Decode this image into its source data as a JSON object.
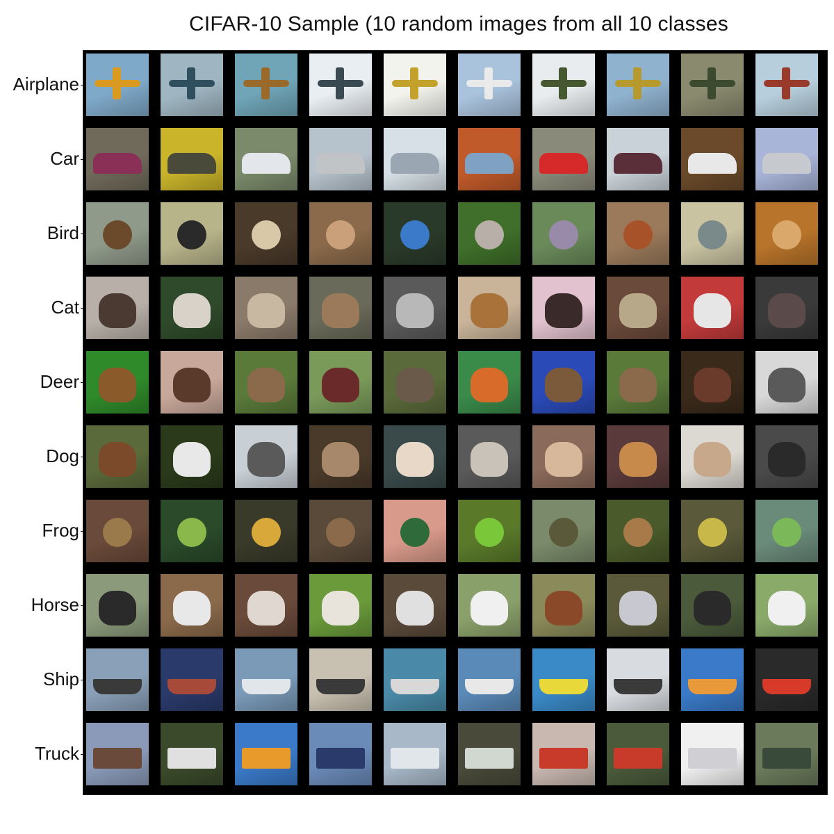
{
  "title": "CIFAR-10 Sample (10 random images from all 10 classes",
  "rows": [
    {
      "label": "Airplane",
      "cells": [
        {
          "bg": "#7fa9c9",
          "fg": "#d99a1f",
          "subject": "airplane"
        },
        {
          "bg": "#9fb6c2",
          "fg": "#2f4f5f",
          "subject": "airplane"
        },
        {
          "bg": "#6fa5b7",
          "fg": "#9a6a2a",
          "subject": "airplane"
        },
        {
          "bg": "#e9eef2",
          "fg": "#3a4a52",
          "subject": "airplane"
        },
        {
          "bg": "#f3f3ee",
          "fg": "#c2a22a",
          "subject": "airplane"
        },
        {
          "bg": "#a9c3dd",
          "fg": "#eaeaea",
          "subject": "airplane"
        },
        {
          "bg": "#e8ecee",
          "fg": "#45582f",
          "subject": "airplane"
        },
        {
          "bg": "#8fb2cf",
          "fg": "#b69a2d",
          "subject": "airplane"
        },
        {
          "bg": "#8a8a6f",
          "fg": "#3c4a2f",
          "subject": "airplane"
        },
        {
          "bg": "#b7cfdd",
          "fg": "#9a3a2a",
          "subject": "airplane"
        }
      ]
    },
    {
      "label": "Car",
      "cells": [
        {
          "bg": "#6f6a5a",
          "fg": "#8a2f55",
          "subject": "car"
        },
        {
          "bg": "#c9b42a",
          "fg": "#4a4a3a",
          "subject": "car"
        },
        {
          "bg": "#7a8a6a",
          "fg": "#e3e6ea",
          "subject": "car"
        },
        {
          "bg": "#b6c2cc",
          "fg": "#c0c4c6",
          "subject": "car"
        },
        {
          "bg": "#d6e0e6",
          "fg": "#9aa6b2",
          "subject": "car"
        },
        {
          "bg": "#c05a2a",
          "fg": "#7fa2c4",
          "subject": "car"
        },
        {
          "bg": "#8a8a7a",
          "fg": "#d62a2a",
          "subject": "car"
        },
        {
          "bg": "#c9d2d8",
          "fg": "#5a2f3a",
          "subject": "car"
        },
        {
          "bg": "#6a4a2a",
          "fg": "#e8e8e8",
          "subject": "car"
        },
        {
          "bg": "#a8b4d8",
          "fg": "#c6cace",
          "subject": "car"
        }
      ]
    },
    {
      "label": "Bird",
      "cells": [
        {
          "bg": "#8f9a8a",
          "fg": "#6a4a2a",
          "subject": "bird"
        },
        {
          "bg": "#b8b48a",
          "fg": "#2a2a2a",
          "subject": "bird"
        },
        {
          "bg": "#4a3a2a",
          "fg": "#d8c8a8",
          "subject": "bird"
        },
        {
          "bg": "#8a6a4a",
          "fg": "#c9a07a",
          "subject": "bird"
        },
        {
          "bg": "#2a3a2a",
          "fg": "#3a7ac9",
          "subject": "bird"
        },
        {
          "bg": "#3f6f2a",
          "fg": "#b8b0a8",
          "subject": "bird"
        },
        {
          "bg": "#6a8a5a",
          "fg": "#9a8aaa",
          "subject": "bird"
        },
        {
          "bg": "#9a7a5a",
          "fg": "#a8522a",
          "subject": "bird"
        },
        {
          "bg": "#c9c3a2",
          "fg": "#7a8a8a",
          "subject": "bird"
        },
        {
          "bg": "#b8742a",
          "fg": "#d9a86a",
          "subject": "bird"
        }
      ]
    },
    {
      "label": "Cat",
      "cells": [
        {
          "bg": "#b8b0a8",
          "fg": "#4a3a32",
          "subject": "cat"
        },
        {
          "bg": "#2f4a2a",
          "fg": "#d8d2c8",
          "subject": "cat"
        },
        {
          "bg": "#8a7a6a",
          "fg": "#c8b8a2",
          "subject": "cat"
        },
        {
          "bg": "#6a6a5a",
          "fg": "#9a7a5a",
          "subject": "cat"
        },
        {
          "bg": "#5a5a5a",
          "fg": "#b8b8b8",
          "subject": "cat"
        },
        {
          "bg": "#c9b49a",
          "fg": "#a8723a",
          "subject": "cat"
        },
        {
          "bg": "#e2c2cf",
          "fg": "#3a2a2a",
          "subject": "cat"
        },
        {
          "bg": "#6a4a3a",
          "fg": "#b8a88a",
          "subject": "cat"
        },
        {
          "bg": "#c23a3a",
          "fg": "#e6e6e6",
          "subject": "cat"
        },
        {
          "bg": "#3a3a3a",
          "fg": "#5a4a4a",
          "subject": "cat"
        }
      ]
    },
    {
      "label": "Deer",
      "cells": [
        {
          "bg": "#2f8a2a",
          "fg": "#8a5a2a",
          "subject": "deer"
        },
        {
          "bg": "#c8a89a",
          "fg": "#5a3a2a",
          "subject": "deer"
        },
        {
          "bg": "#5a7a3a",
          "fg": "#8a6a4a",
          "subject": "deer"
        },
        {
          "bg": "#7a9a5a",
          "fg": "#6a2a2a",
          "subject": "deer"
        },
        {
          "bg": "#5a6a3a",
          "fg": "#6a5a4a",
          "subject": "deer"
        },
        {
          "bg": "#3a8a4a",
          "fg": "#d86a2a",
          "subject": "deer"
        },
        {
          "bg": "#2a4ab8",
          "fg": "#7a5a3a",
          "subject": "deer"
        },
        {
          "bg": "#5a7a3a",
          "fg": "#8a6a4a",
          "subject": "deer"
        },
        {
          "bg": "#3a2a1a",
          "fg": "#6a3a2a",
          "subject": "deer"
        },
        {
          "bg": "#d8d8d8",
          "fg": "#5a5a5a",
          "subject": "deer"
        }
      ]
    },
    {
      "label": "Dog",
      "cells": [
        {
          "bg": "#5a6a3a",
          "fg": "#7a4a2a",
          "subject": "dog"
        },
        {
          "bg": "#2a3a1a",
          "fg": "#e8e8e8",
          "subject": "dog"
        },
        {
          "bg": "#c8d0d6",
          "fg": "#5a5a5a",
          "subject": "dog"
        },
        {
          "bg": "#4a3a2a",
          "fg": "#a8886a",
          "subject": "dog"
        },
        {
          "bg": "#3a4a4a",
          "fg": "#e8d8c8",
          "subject": "dog"
        },
        {
          "bg": "#5a5a5a",
          "fg": "#c8c2b8",
          "subject": "dog"
        },
        {
          "bg": "#8a6a5a",
          "fg": "#d8b89a",
          "subject": "dog"
        },
        {
          "bg": "#5a3a3a",
          "fg": "#c88a4a",
          "subject": "dog"
        },
        {
          "bg": "#dcd8d2",
          "fg": "#c8a88a",
          "subject": "dog"
        },
        {
          "bg": "#4a4a4a",
          "fg": "#2a2a2a",
          "subject": "dog"
        }
      ]
    },
    {
      "label": "Frog",
      "cells": [
        {
          "bg": "#6a4a3a",
          "fg": "#9a7a4a",
          "subject": "frog"
        },
        {
          "bg": "#2a4a2a",
          "fg": "#8ab84a",
          "subject": "frog"
        },
        {
          "bg": "#3a3a2a",
          "fg": "#d8a83a",
          "subject": "frog"
        },
        {
          "bg": "#5a4a3a",
          "fg": "#8a6a4a",
          "subject": "frog"
        },
        {
          "bg": "#d89a8a",
          "fg": "#2f6a3a",
          "subject": "frog"
        },
        {
          "bg": "#5a7a2a",
          "fg": "#7ac83a",
          "subject": "frog"
        },
        {
          "bg": "#7a8a6a",
          "fg": "#5a5a3a",
          "subject": "frog"
        },
        {
          "bg": "#4a5a2a",
          "fg": "#a87a4a",
          "subject": "frog"
        },
        {
          "bg": "#5a5a3a",
          "fg": "#c8b84a",
          "subject": "frog"
        },
        {
          "bg": "#6a8a7a",
          "fg": "#7ab85a",
          "subject": "frog"
        }
      ]
    },
    {
      "label": "Horse",
      "cells": [
        {
          "bg": "#8a9a7a",
          "fg": "#2a2a2a",
          "subject": "horse"
        },
        {
          "bg": "#8a6a4a",
          "fg": "#e8e8e8",
          "subject": "horse"
        },
        {
          "bg": "#6a4a3a",
          "fg": "#e0d8d0",
          "subject": "horse"
        },
        {
          "bg": "#6a9a3a",
          "fg": "#e8e4dc",
          "subject": "horse"
        },
        {
          "bg": "#5a4a3a",
          "fg": "#e0e0e0",
          "subject": "horse"
        },
        {
          "bg": "#8aa06a",
          "fg": "#f0f0f0",
          "subject": "horse"
        },
        {
          "bg": "#8a8a5a",
          "fg": "#8a4a2a",
          "subject": "horse"
        },
        {
          "bg": "#5a5a3a",
          "fg": "#c8c8d0",
          "subject": "horse"
        },
        {
          "bg": "#4a5a3a",
          "fg": "#2a2a2a",
          "subject": "horse"
        },
        {
          "bg": "#8aaa6a",
          "fg": "#f0f0f0",
          "subject": "horse"
        }
      ]
    },
    {
      "label": "Ship",
      "cells": [
        {
          "bg": "#8aa0b8",
          "fg": "#3a3a3a",
          "subject": "ship"
        },
        {
          "bg": "#2a3a6a",
          "fg": "#a84a3a",
          "subject": "ship"
        },
        {
          "bg": "#7a9ab8",
          "fg": "#e0e6ea",
          "subject": "ship"
        },
        {
          "bg": "#c8c0b0",
          "fg": "#3a3a3a",
          "subject": "ship"
        },
        {
          "bg": "#4a8aa8",
          "fg": "#d8d8d8",
          "subject": "ship"
        },
        {
          "bg": "#5a8ab8",
          "fg": "#e8e8e8",
          "subject": "ship"
        },
        {
          "bg": "#3a8ac8",
          "fg": "#e8d83a",
          "subject": "ship"
        },
        {
          "bg": "#d8dce0",
          "fg": "#3a3a3a",
          "subject": "ship"
        },
        {
          "bg": "#3a7ac8",
          "fg": "#e89a3a",
          "subject": "ship"
        },
        {
          "bg": "#2a2a2a",
          "fg": "#d83a2a",
          "subject": "ship"
        }
      ]
    },
    {
      "label": "Truck",
      "cells": [
        {
          "bg": "#8a9ab8",
          "fg": "#6a4a3a",
          "subject": "truck"
        },
        {
          "bg": "#3a4a2a",
          "fg": "#e0e0e0",
          "subject": "truck"
        },
        {
          "bg": "#3a7ac8",
          "fg": "#e89a2a",
          "subject": "truck"
        },
        {
          "bg": "#6a8ab8",
          "fg": "#2a3a6a",
          "subject": "truck"
        },
        {
          "bg": "#a8b8c8",
          "fg": "#e0e6ea",
          "subject": "truck"
        },
        {
          "bg": "#4a4a3a",
          "fg": "#d0d8d0",
          "subject": "truck"
        },
        {
          "bg": "#c8b8b0",
          "fg": "#c83a2a",
          "subject": "truck"
        },
        {
          "bg": "#4a5a3a",
          "fg": "#c83a2a",
          "subject": "truck"
        },
        {
          "bg": "#f0f0f0",
          "fg": "#d0d0d4",
          "subject": "truck"
        },
        {
          "bg": "#6a7a5a",
          "fg": "#3a4a3a",
          "subject": "truck"
        }
      ]
    }
  ]
}
